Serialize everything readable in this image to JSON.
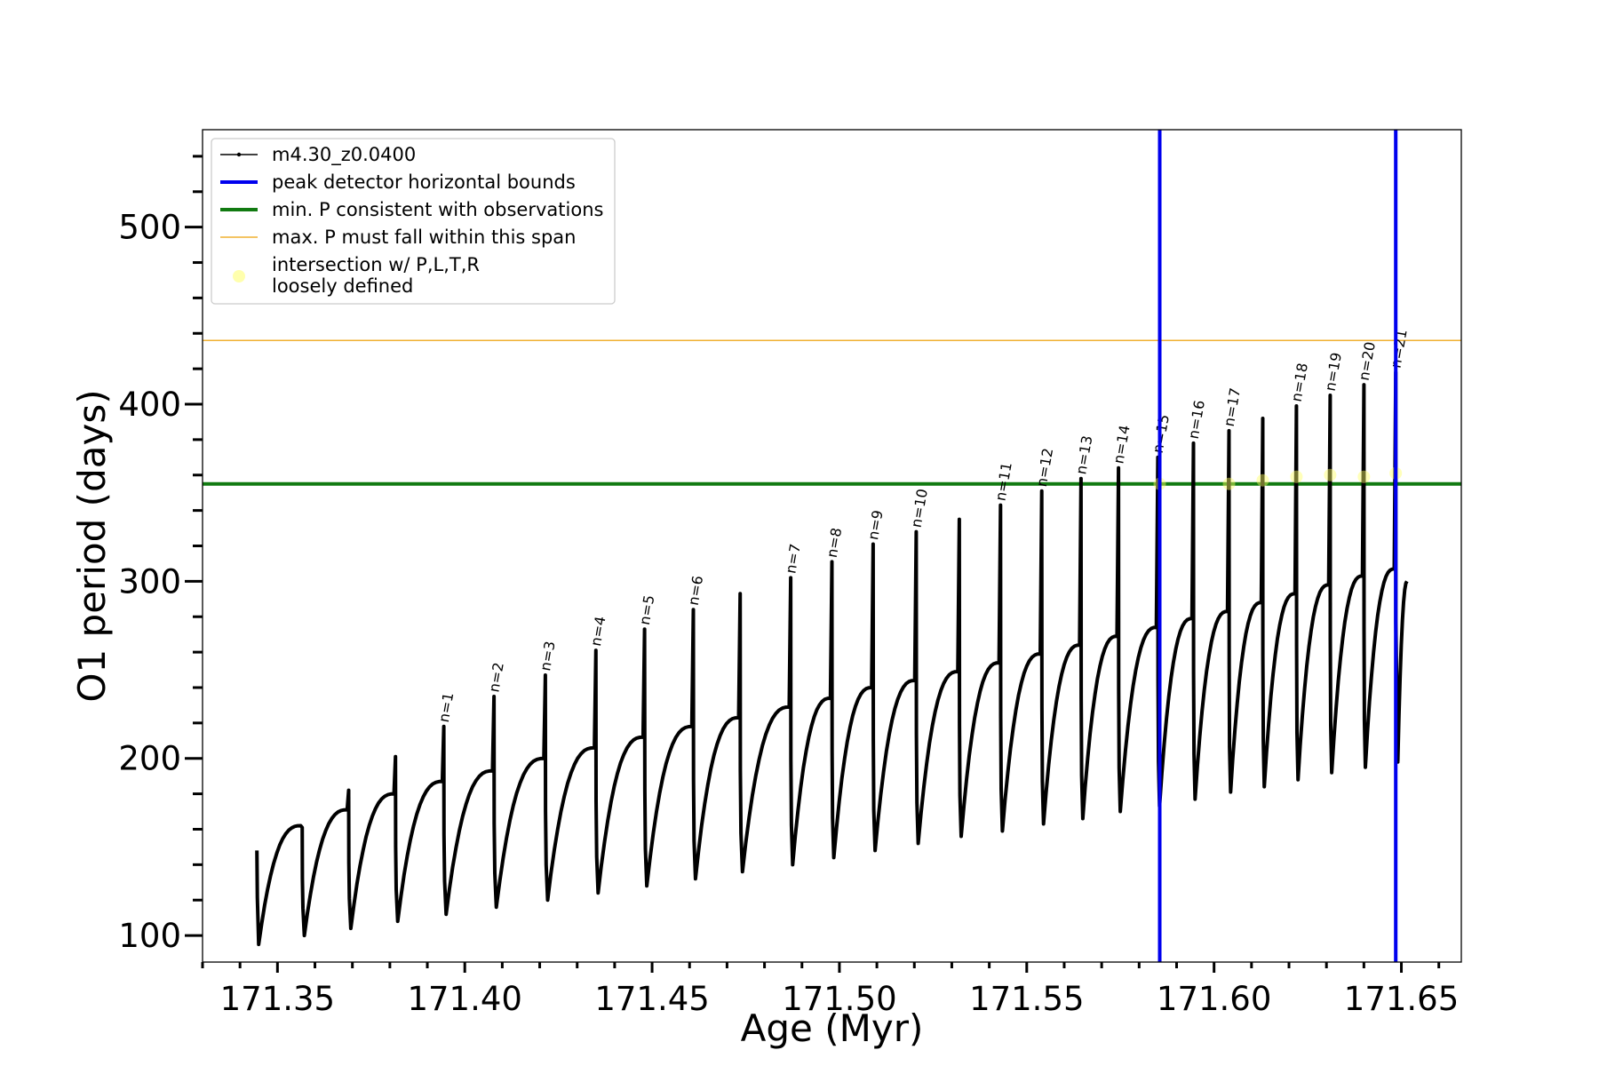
{
  "chart_data": {
    "type": "line",
    "xlabel": "Age (Myr)",
    "ylabel": "O1 period (days)",
    "xlim": [
      171.33,
      171.666
    ],
    "ylim": [
      85,
      555
    ],
    "x_ticks": [
      {
        "value": 171.35,
        "label": "171.35"
      },
      {
        "value": 171.4,
        "label": "171.40"
      },
      {
        "value": 171.45,
        "label": "171.45"
      },
      {
        "value": 171.5,
        "label": "171.50"
      },
      {
        "value": 171.55,
        "label": "171.55"
      },
      {
        "value": 171.6,
        "label": "171.60"
      },
      {
        "value": 171.65,
        "label": "171.65"
      }
    ],
    "y_ticks": [
      {
        "value": 100,
        "label": "100"
      },
      {
        "value": 200,
        "label": "200"
      },
      {
        "value": 300,
        "label": "300"
      },
      {
        "value": 400,
        "label": "400"
      },
      {
        "value": 500,
        "label": "500"
      }
    ],
    "grid": false,
    "legend_position": "top-left",
    "legend": [
      {
        "label": "m4.30_z0.0400",
        "kind": "line-marker",
        "color": "#000000"
      },
      {
        "label": "peak detector horizontal bounds",
        "kind": "thick-line",
        "color": "#0000ee"
      },
      {
        "label": "min. P consistent with observations",
        "kind": "thick-line",
        "color": "#117a11"
      },
      {
        "label": "max. P must fall within this span",
        "kind": "thin-line",
        "color": "#f0b030"
      },
      {
        "label": "intersection w/ P,L,T,R",
        "label2": "loosely defined",
        "kind": "dot",
        "color": "#ffff99"
      }
    ],
    "series": [
      {
        "name": "m4.30_z0.0400",
        "color": "#000000",
        "start_age": 171.3445,
        "start_period": 148,
        "end_age": 171.6515,
        "end_period": 300,
        "cycles": [
          {
            "age": 171.3566,
            "max": 162,
            "spike": 161,
            "min": 100
          },
          {
            "age": 171.369,
            "max": 171,
            "spike": 182,
            "min": 104
          },
          {
            "age": 171.3815,
            "max": 180,
            "spike": 201,
            "min": 108
          },
          {
            "age": 171.3944,
            "max": 187,
            "spike": 218,
            "min": 112,
            "label": "n=1"
          },
          {
            "age": 171.4078,
            "max": 193,
            "spike": 235,
            "min": 116,
            "label": "n=2"
          },
          {
            "age": 171.4215,
            "max": 200,
            "spike": 247,
            "min": 120,
            "label": "n=3"
          },
          {
            "age": 171.435,
            "max": 206,
            "spike": 261,
            "min": 124,
            "label": "n=4"
          },
          {
            "age": 171.448,
            "max": 212,
            "spike": 273,
            "min": 128,
            "label": "n=5"
          },
          {
            "age": 171.461,
            "max": 218,
            "spike": 284,
            "min": 132,
            "label": "n=6"
          },
          {
            "age": 171.4735,
            "max": 223,
            "spike": 293,
            "min": 136
          },
          {
            "age": 171.487,
            "max": 229,
            "spike": 302,
            "min": 140,
            "label": "n=7"
          },
          {
            "age": 171.498,
            "max": 234,
            "spike": 311,
            "min": 144,
            "label": "n=8"
          },
          {
            "age": 171.509,
            "max": 240,
            "spike": 321,
            "min": 148,
            "label": "n=9"
          },
          {
            "age": 171.5205,
            "max": 244,
            "spike": 328,
            "min": 152,
            "label": "n=10"
          },
          {
            "age": 171.532,
            "max": 249,
            "spike": 335,
            "min": 156
          },
          {
            "age": 171.543,
            "max": 254,
            "spike": 343,
            "min": 159,
            "label": "n=11"
          },
          {
            "age": 171.554,
            "max": 259,
            "spike": 351,
            "min": 163,
            "label": "n=12"
          },
          {
            "age": 171.5645,
            "max": 264,
            "spike": 358,
            "min": 166,
            "label": "n=13"
          },
          {
            "age": 171.5745,
            "max": 269,
            "spike": 364,
            "min": 170,
            "label": "n=14"
          },
          {
            "age": 171.585,
            "max": 274,
            "spike": 370,
            "min": 173,
            "label": "n=15"
          },
          {
            "age": 171.5945,
            "max": 279,
            "spike": 378,
            "min": 177,
            "label": "n=16"
          },
          {
            "age": 171.604,
            "max": 283,
            "spike": 385,
            "min": 181,
            "label": "n=17"
          },
          {
            "age": 171.613,
            "max": 288,
            "spike": 392,
            "min": 184
          },
          {
            "age": 171.622,
            "max": 293,
            "spike": 399,
            "min": 188,
            "label": "n=18"
          },
          {
            "age": 171.631,
            "max": 298,
            "spike": 405,
            "min": 192,
            "label": "n=19"
          },
          {
            "age": 171.64,
            "max": 303,
            "spike": 411,
            "min": 195,
            "label": "n=20"
          },
          {
            "age": 171.6485,
            "max": 307,
            "spike": 418,
            "min": 198,
            "label": "n=21"
          }
        ]
      }
    ],
    "vertical_lines": [
      {
        "x": 171.5855,
        "color": "#0000ee",
        "name": "peak detector horizontal bounds"
      },
      {
        "x": 171.6485,
        "color": "#0000ee",
        "name": "peak detector horizontal bounds"
      }
    ],
    "horizontal_lines": [
      {
        "y": 355,
        "color": "#117a11",
        "name": "min. P consistent with observations"
      },
      {
        "y": 436,
        "color": "#f0b030",
        "name": "max. P must fall within this span"
      }
    ],
    "intersection_points": [
      {
        "x": 171.5855,
        "y": 355
      },
      {
        "x": 171.604,
        "y": 355
      },
      {
        "x": 171.613,
        "y": 357
      },
      {
        "x": 171.622,
        "y": 359
      },
      {
        "x": 171.631,
        "y": 360
      },
      {
        "x": 171.64,
        "y": 359
      },
      {
        "x": 171.6485,
        "y": 361
      }
    ]
  }
}
